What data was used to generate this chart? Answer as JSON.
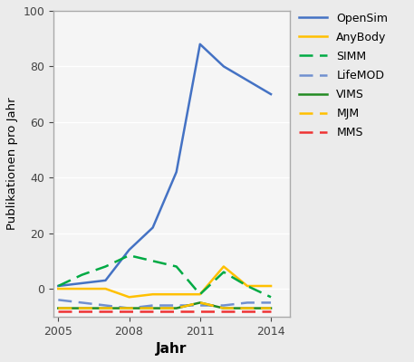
{
  "years": [
    2005,
    2006,
    2007,
    2008,
    2009,
    2010,
    2011,
    2012,
    2013,
    2014
  ],
  "opensim": [
    1,
    2,
    3,
    14,
    22,
    42,
    88,
    80,
    75,
    70
  ],
  "anybody": [
    0,
    0,
    0,
    -3,
    -2,
    -2,
    -2,
    8,
    1,
    1
  ],
  "simm": [
    1,
    5,
    8,
    12,
    10,
    8,
    -2,
    6,
    1,
    -3
  ],
  "lifemod": [
    -4,
    -5,
    -6,
    -7,
    -6,
    -6,
    -6,
    -6,
    -5,
    -5
  ],
  "vims": [
    -7,
    -7,
    -7,
    -7,
    -7,
    -7,
    -5,
    -7,
    -7,
    -7
  ],
  "mjm": [
    -7,
    -7,
    -7,
    -7,
    -7,
    -7,
    -5,
    -7,
    -7,
    -7
  ],
  "mms": [
    -8,
    -8,
    -8,
    -8,
    -8,
    -8,
    -8,
    -8,
    -8,
    -8
  ],
  "colors": {
    "opensim": "#4472c4",
    "anybody": "#ffc000",
    "simm": "#00aa44",
    "lifemod": "#7090d0",
    "vims": "#228B22",
    "mjm": "#ffc000",
    "mms": "#ee3333"
  },
  "xlabel": "Jahr",
  "ylabel": "Publikationen pro Jahr",
  "ylim": [
    -10,
    100
  ],
  "yticks": [
    0,
    20,
    40,
    60,
    80,
    100
  ],
  "xticks": [
    2005,
    2008,
    2011,
    2014
  ],
  "xlim": [
    2004.8,
    2014.8
  ],
  "background_color": "#ebebeb",
  "plot_bg_color": "#f5f5f5",
  "border_color": "#aaaaaa",
  "grid_color": "#ffffff",
  "legend_labels": [
    "OpenSim",
    "AnyBody",
    "SIMM",
    "LifeMOD",
    "VIMS",
    "MJM",
    "MMS"
  ]
}
